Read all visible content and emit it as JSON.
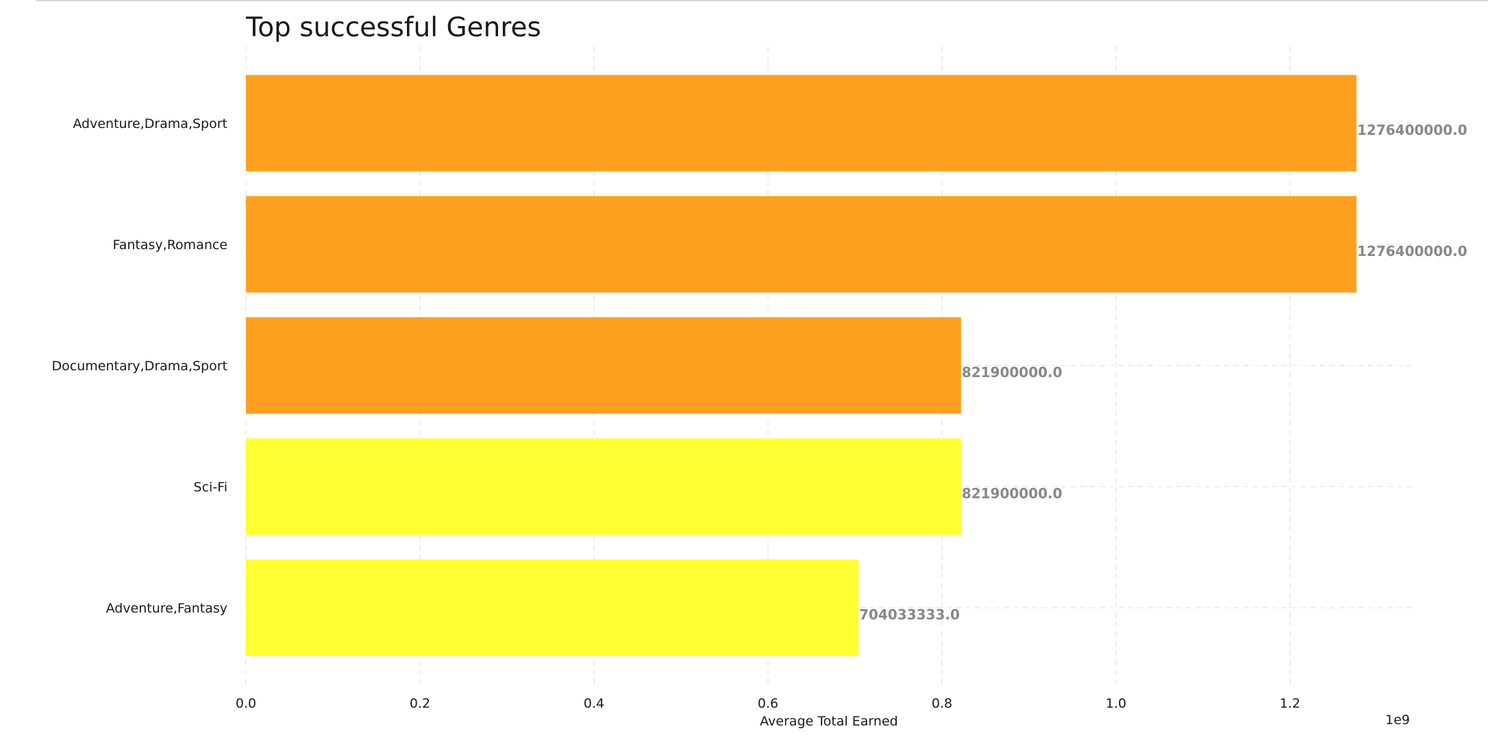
{
  "chart_data": {
    "type": "bar",
    "orientation": "horizontal",
    "title": "Top successful Genres",
    "xlabel": "Average Total Earned",
    "ylabel": "",
    "x_scale_note": "1e9",
    "xlim": [
      0,
      1.34
    ],
    "xticks": [
      0.0,
      0.2,
      0.4,
      0.6,
      0.8,
      1.0,
      1.2
    ],
    "xtick_labels": [
      "0.0",
      "0.2",
      "0.4",
      "0.6",
      "0.8",
      "1.0",
      "1.2"
    ],
    "grid": true,
    "categories": [
      "Adventure,Drama,Sport",
      "Fantasy,Romance",
      "Documentary,Drama,Sport",
      "Sci-Fi",
      "Adventure,Fantasy"
    ],
    "values": [
      1276400000,
      1276400000,
      821900000,
      821900000,
      704033333
    ],
    "value_labels": [
      "1276400000.0",
      "1276400000.0",
      "821900000.0",
      "821900000.0",
      "704033333.0"
    ],
    "bar_colors": [
      "#ffa020",
      "#ffa020",
      "#ffa020",
      "#ffff33",
      "#ffff33"
    ]
  }
}
